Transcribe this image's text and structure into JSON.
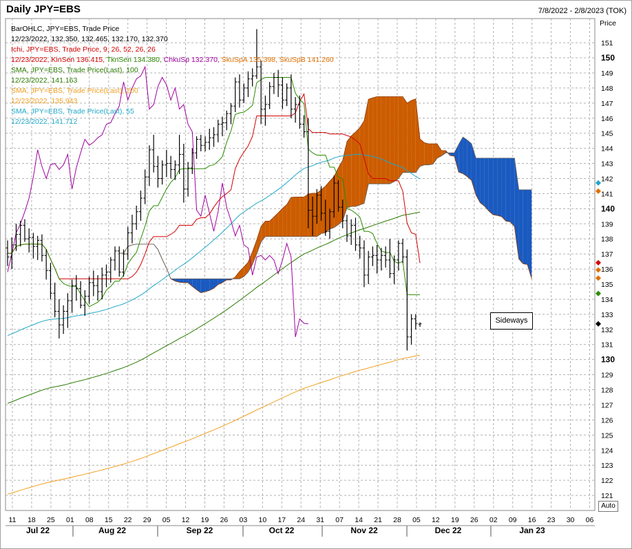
{
  "header": {
    "title": "Daily JPY=EBS",
    "date_range": "7/8/2022 - 2/8/2023 (TOK)"
  },
  "legend": [
    {
      "text": "BarOHLC, JPY=EBS, Trade Price",
      "color": "#000000"
    },
    {
      "text": "12/23/2022, 132.350, 132.465, 132.170, 132.370",
      "color": "#000000"
    },
    {
      "text": "Ichi, JPY=EBS, Trade Price,  9, 26, 52, 26, 26",
      "color": "#d40000"
    },
    {
      "text": "12/23/2022, ",
      "color": "#d40000",
      "parts": [
        {
          "text": "KinSen 136.415, ",
          "color": "#d40000"
        },
        {
          "text": "TknSen 134.380, ",
          "color": "#2a8c00"
        },
        {
          "text": "ChkuSp 132.370, ",
          "color": "#a000a0"
        },
        {
          "text": "SkuSpA 135.398, ",
          "color": "#e07000"
        },
        {
          "text": "SkuSpB 141.260",
          "color": "#e07000"
        }
      ]
    },
    {
      "text": "SMA, JPY=EBS, Trade Price(Last),  100",
      "color": "#2a7a00"
    },
    {
      "text": "12/23/2022, 141.163",
      "color": "#2a7a00"
    },
    {
      "text": "SMA, JPY=EBS, Trade Price(Last),  200",
      "color": "#f0a020"
    },
    {
      "text": "12/23/2022, 135.943",
      "color": "#f0a020"
    },
    {
      "text": "SMA, JPY=EBS, Trade Price(Last),  55",
      "color": "#20a8c8"
    },
    {
      "text": "12/23/2022, 141.712",
      "color": "#20a8c8"
    }
  ],
  "auto_button": "Auto",
  "annotation": "Sideways",
  "chart_data": {
    "type": "ohlc",
    "ylabel": "Price",
    "ylim": [
      120,
      152.6
    ],
    "y_ticks": [
      121,
      122,
      123,
      124,
      125,
      126,
      127,
      128,
      129,
      130,
      131,
      132,
      133,
      134,
      135,
      136,
      137,
      138,
      139,
      140,
      141,
      142,
      143,
      144,
      145,
      146,
      147,
      148,
      149,
      150,
      151
    ],
    "y_bold_ticks": [
      130,
      140,
      150
    ],
    "x_day_ticks": [
      "11",
      "18",
      "25",
      "01",
      "08",
      "15",
      "22",
      "29",
      "05",
      "12",
      "19",
      "26",
      "03",
      "10",
      "17",
      "24",
      "31",
      "07",
      "14",
      "21",
      "28",
      "05",
      "12",
      "19",
      "26",
      "02",
      "09",
      "16",
      "23",
      "30",
      "06"
    ],
    "x_month_labels": [
      "Jul 22",
      "Aug 22",
      "Sep 22",
      "Oct 22",
      "Nov 22",
      "Dec 22",
      "Jan 23"
    ],
    "colors": {
      "cloud_bull": "#cc5c00",
      "cloud_bear": "#1a5ac0",
      "kijun": "#d40000",
      "tenkan": "#2a8c00",
      "chikou": "#a000a0",
      "sma100": "#2a7a00",
      "sma200": "#f0a020",
      "sma55": "#20a8c8",
      "bars": "#000000"
    },
    "price_bars": [
      [
        137.4,
        137.9,
        136.2,
        136.8
      ],
      [
        136.8,
        138.1,
        136.0,
        137.6
      ],
      [
        137.6,
        139.0,
        137.2,
        138.3
      ],
      [
        138.3,
        139.2,
        137.5,
        138.9
      ],
      [
        138.9,
        139.3,
        137.8,
        138.0
      ],
      [
        138.0,
        138.7,
        137.1,
        138.1
      ],
      [
        138.1,
        138.4,
        136.7,
        137.5
      ],
      [
        137.5,
        138.2,
        136.6,
        137.9
      ],
      [
        137.9,
        138.3,
        136.5,
        136.9
      ],
      [
        136.9,
        137.3,
        135.3,
        135.9
      ],
      [
        135.9,
        136.4,
        134.0,
        134.4
      ],
      [
        134.4,
        135.1,
        132.8,
        133.2
      ],
      [
        133.2,
        134.0,
        131.4,
        132.3
      ],
      [
        132.3,
        133.6,
        131.7,
        133.2
      ],
      [
        133.2,
        134.4,
        132.1,
        133.9
      ],
      [
        133.9,
        135.3,
        133.1,
        134.9
      ],
      [
        134.9,
        135.6,
        133.9,
        134.7
      ],
      [
        134.7,
        135.2,
        133.4,
        133.6
      ],
      [
        133.6,
        134.6,
        132.9,
        134.2
      ],
      [
        134.2,
        135.5,
        133.7,
        135.1
      ],
      [
        135.1,
        135.9,
        134.2,
        134.9
      ],
      [
        134.9,
        135.6,
        133.9,
        134.5
      ],
      [
        134.5,
        136.1,
        134.0,
        135.6
      ],
      [
        135.6,
        136.3,
        134.8,
        135.8
      ],
      [
        135.8,
        136.8,
        135.1,
        136.6
      ],
      [
        136.6,
        137.5,
        135.9,
        137.2
      ],
      [
        137.2,
        137.5,
        135.5,
        135.8
      ],
      [
        135.8,
        137.3,
        135.5,
        137.0
      ],
      [
        137.0,
        138.8,
        136.6,
        138.4
      ],
      [
        138.4,
        139.6,
        137.7,
        139.0
      ],
      [
        139.0,
        140.2,
        138.6,
        139.8
      ],
      [
        139.8,
        141.2,
        139.2,
        140.7
      ],
      [
        140.7,
        142.6,
        140.3,
        142.1
      ],
      [
        142.1,
        144.2,
        141.5,
        143.9
      ],
      [
        143.9,
        144.9,
        142.4,
        142.8
      ],
      [
        142.8,
        143.5,
        141.4,
        142.0
      ],
      [
        142.0,
        143.2,
        141.6,
        142.9
      ],
      [
        142.9,
        143.9,
        142.1,
        143.0
      ],
      [
        143.0,
        143.5,
        142.0,
        142.6
      ],
      [
        142.6,
        143.2,
        141.9,
        142.9
      ],
      [
        142.9,
        144.9,
        142.3,
        143.6
      ],
      [
        143.6,
        144.3,
        140.4,
        141.3
      ],
      [
        141.3,
        143.1,
        140.8,
        142.7
      ],
      [
        142.7,
        144.0,
        142.3,
        143.7
      ],
      [
        143.7,
        144.8,
        143.3,
        144.6
      ],
      [
        144.6,
        144.9,
        143.8,
        144.2
      ],
      [
        144.2,
        144.8,
        143.8,
        144.4
      ],
      [
        144.4,
        145.3,
        143.9,
        144.7
      ],
      [
        144.7,
        145.4,
        144.1,
        144.9
      ],
      [
        144.9,
        145.9,
        144.4,
        145.6
      ],
      [
        145.6,
        146.1,
        144.8,
        145.7
      ],
      [
        145.7,
        146.5,
        145.2,
        146.3
      ],
      [
        146.3,
        147.0,
        145.6,
        146.8
      ],
      [
        146.8,
        148.7,
        146.4,
        148.4
      ],
      [
        148.4,
        148.9,
        146.7,
        147.2
      ],
      [
        147.2,
        148.3,
        147.0,
        148.0
      ],
      [
        148.0,
        149.1,
        147.4,
        148.6
      ],
      [
        148.6,
        149.3,
        148.1,
        148.8
      ],
      [
        148.8,
        151.9,
        148.6,
        149.4
      ],
      [
        149.4,
        149.8,
        145.6,
        146.6
      ],
      [
        146.6,
        147.5,
        145.5,
        146.9
      ],
      [
        146.9,
        148.4,
        146.6,
        148.1
      ],
      [
        148.1,
        149.0,
        147.6,
        148.7
      ],
      [
        148.7,
        149.2,
        147.4,
        148.2
      ],
      [
        148.2,
        148.7,
        146.6,
        147.2
      ],
      [
        147.2,
        148.3,
        146.8,
        148.0
      ],
      [
        148.0,
        148.9,
        146.0,
        146.6
      ],
      [
        146.6,
        147.4,
        145.7,
        146.9
      ],
      [
        146.9,
        147.5,
        145.3,
        145.6
      ],
      [
        145.6,
        146.2,
        144.7,
        145.1
      ],
      [
        145.1,
        146.0,
        138.7,
        139.9
      ],
      [
        139.9,
        140.8,
        138.2,
        139.5
      ],
      [
        139.5,
        141.3,
        139.0,
        140.9
      ],
      [
        140.9,
        141.5,
        139.2,
        139.7
      ],
      [
        139.7,
        140.6,
        138.2,
        138.5
      ],
      [
        138.5,
        140.0,
        138.0,
        139.8
      ],
      [
        139.8,
        142.2,
        139.4,
        141.7
      ],
      [
        141.7,
        141.9,
        139.8,
        140.1
      ],
      [
        140.1,
        140.6,
        138.7,
        139.2
      ],
      [
        139.2,
        139.6,
        137.8,
        138.2
      ],
      [
        138.2,
        139.3,
        137.6,
        138.9
      ],
      [
        138.9,
        139.4,
        137.2,
        137.6
      ],
      [
        137.6,
        138.2,
        136.7,
        137.4
      ],
      [
        137.4,
        137.9,
        134.8,
        135.6
      ],
      [
        135.6,
        137.2,
        135.0,
        136.8
      ],
      [
        136.8,
        137.5,
        136.2,
        136.9
      ],
      [
        136.9,
        137.6,
        135.7,
        136.6
      ],
      [
        136.6,
        137.4,
        135.9,
        136.9
      ],
      [
        136.9,
        137.5,
        136.1,
        136.6
      ],
      [
        136.6,
        138.0,
        135.4,
        135.7
      ],
      [
        135.7,
        136.9,
        135.0,
        136.6
      ],
      [
        136.6,
        137.9,
        135.9,
        137.7
      ],
      [
        137.7,
        138.0,
        136.4,
        136.8
      ],
      [
        136.8,
        137.3,
        130.6,
        131.5
      ],
      [
        131.5,
        133.0,
        131.0,
        132.7
      ],
      [
        132.7,
        133.0,
        132.0,
        132.4
      ],
      [
        132.35,
        132.465,
        132.17,
        132.37
      ]
    ],
    "price_markers": [
      {
        "value": 141.71,
        "color": "#20a8c8"
      },
      {
        "value": 141.16,
        "color": "#e07000"
      },
      {
        "value": 136.42,
        "color": "#d40000"
      },
      {
        "value": 135.94,
        "color": "#e07000"
      },
      {
        "value": 135.4,
        "color": "#e07000"
      },
      {
        "value": 134.38,
        "color": "#2a8c00"
      },
      {
        "value": 132.37,
        "color": "#000000"
      }
    ]
  }
}
